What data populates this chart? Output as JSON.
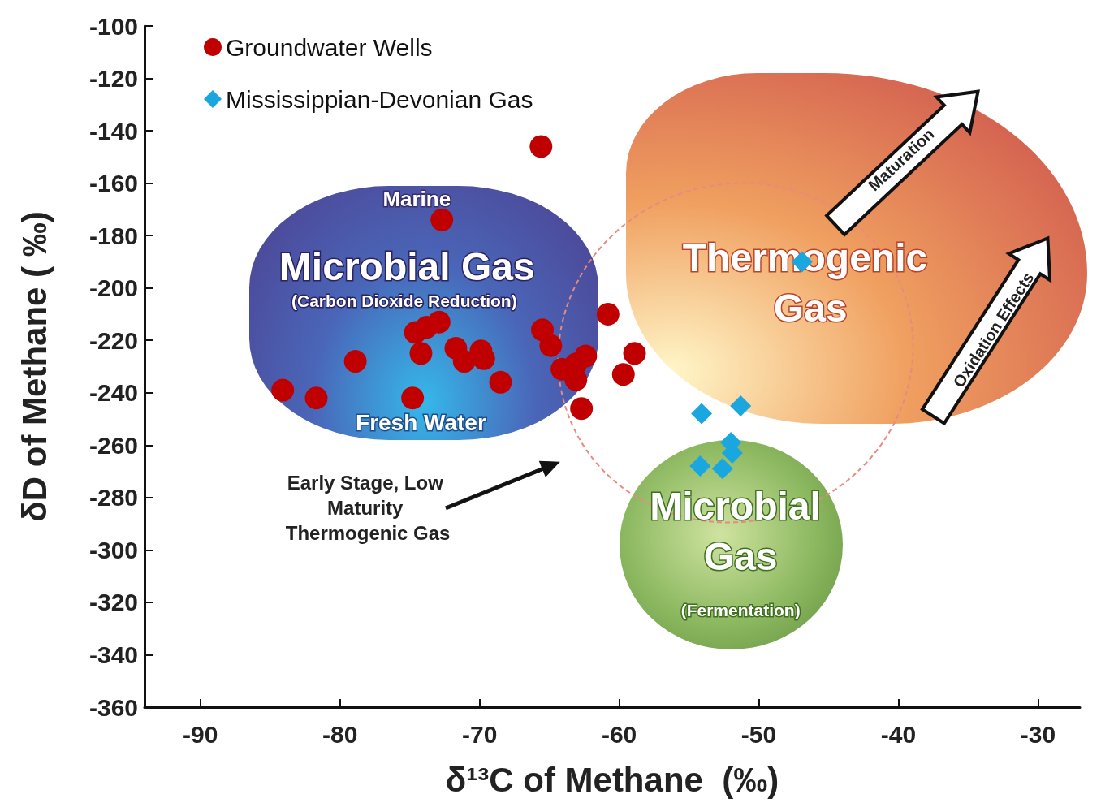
{
  "chart_data": {
    "type": "scatter",
    "xlabel": "δ¹³C of Methane  (‰)",
    "ylabel": "δD of Methane ( ‰)",
    "xlim": [
      -94,
      -27
    ],
    "xticks": [
      -90,
      -80,
      -70,
      -60,
      -50,
      -40,
      -30
    ],
    "ylim": [
      -360,
      -100
    ],
    "yticks": [
      -360,
      -340,
      -320,
      -300,
      -280,
      -260,
      -240,
      -220,
      -200,
      -180,
      -160,
      -140,
      -120,
      -100
    ],
    "grid": false,
    "legend": "top left",
    "series": [
      {
        "name": "Groundwater Wells",
        "color": "#c00000",
        "marker": "circle",
        "x": [
          -65.6,
          -72.7,
          -84.1,
          -81.7,
          -78.9,
          -74.8,
          -74.6,
          -73.8,
          -72.9,
          -74.2,
          -71.7,
          -71.1,
          -69.9,
          -69.7,
          -68.5,
          -60.8,
          -65.5,
          -64.9,
          -64.1,
          -62.4,
          -63.1,
          -63.1,
          -58.9,
          -59.7,
          -62.7
        ],
        "values": [
          -146,
          -174,
          -239,
          -242,
          -228,
          -242,
          -217,
          -215,
          -213,
          -225,
          -223,
          -228,
          -224,
          -227,
          -236,
          -210,
          -216,
          -222,
          -231,
          -226,
          -229,
          -235,
          -225,
          -233,
          -246
        ]
      },
      {
        "name": "Mississippian-Devonian Gas",
        "color": "#1aa7e0",
        "marker": "diamond",
        "x": [
          -46.9,
          -54.1,
          -51.3,
          -52.0,
          -51.9,
          -54.2,
          -52.6
        ],
        "values": [
          -190,
          -248,
          -245,
          -259,
          -263,
          -268,
          -269
        ]
      }
    ],
    "annotations": [
      "Marine",
      "Microbial Gas",
      "(Carbon Dioxide Reduction)",
      "Fresh Water",
      "Thermogenic Gas",
      "Microbial Gas",
      "(Fermentation)",
      "Maturation",
      "Oxidation Effects",
      "Early Stage, Low Maturity Thermogenic Gas"
    ]
  }
}
